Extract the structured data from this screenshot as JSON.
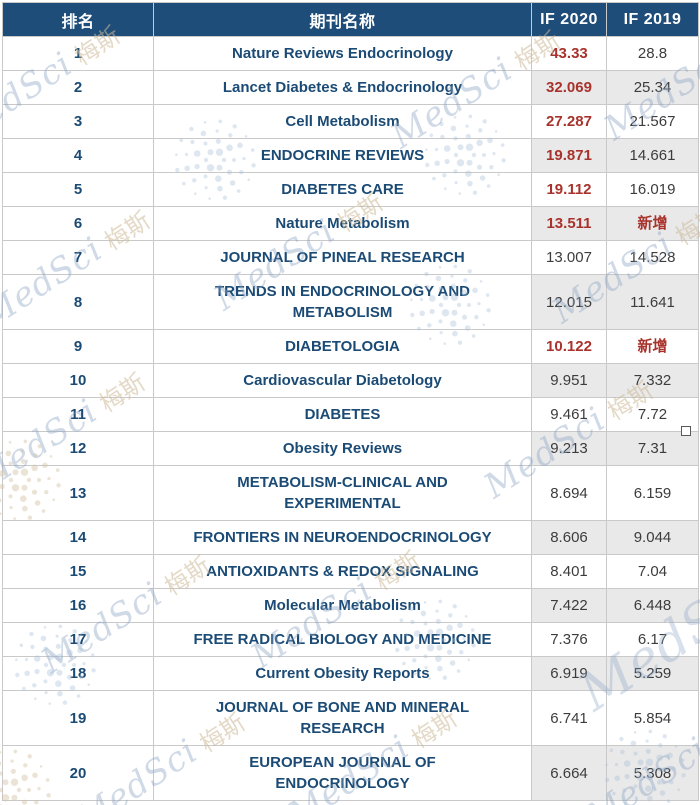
{
  "watermark": {
    "en": "MedSci",
    "cn": "梅斯"
  },
  "colors": {
    "header_bg": "#1e4d79",
    "header_text": "#ffffff",
    "journal_text": "#1b4b75",
    "highlight_red": "#a8332c",
    "value_text": "#3c3c3c",
    "alt_if_cell_bg": "#e9e9e9",
    "border": "#c9c9c9",
    "watermark_blue": "#a9c0d8",
    "watermark_tan": "#d2c2a4"
  },
  "chart_data": {
    "type": "table",
    "title": "",
    "columns": [
      "排名",
      "期刊名称",
      "IF 2020",
      "IF 2019"
    ],
    "new_entry_label": "新增",
    "rows": [
      {
        "rank": "1",
        "journal": "Nature Reviews Endocrinology",
        "if2020": "43.33",
        "if2020_red": true,
        "if2019": "28.8",
        "if2019_red": false
      },
      {
        "rank": "2",
        "journal": "Lancet Diabetes & Endocrinology",
        "if2020": "32.069",
        "if2020_red": true,
        "if2019": "25.34",
        "if2019_red": false
      },
      {
        "rank": "3",
        "journal": "Cell Metabolism",
        "if2020": "27.287",
        "if2020_red": true,
        "if2019": "21.567",
        "if2019_red": false
      },
      {
        "rank": "4",
        "journal": "ENDOCRINE REVIEWS",
        "if2020": "19.871",
        "if2020_red": true,
        "if2019": "14.661",
        "if2019_red": false
      },
      {
        "rank": "5",
        "journal": "DIABETES CARE",
        "if2020": "19.112",
        "if2020_red": true,
        "if2019": "16.019",
        "if2019_red": false
      },
      {
        "rank": "6",
        "journal": "Nature Metabolism",
        "if2020": "13.511",
        "if2020_red": true,
        "if2019": "新增",
        "if2019_red": true
      },
      {
        "rank": "7",
        "journal": "JOURNAL OF PINEAL RESEARCH",
        "if2020": "13.007",
        "if2020_red": false,
        "if2019": "14.528",
        "if2019_red": false
      },
      {
        "rank": "8",
        "journal": "TRENDS IN ENDOCRINOLOGY AND\nMETABOLISM",
        "if2020": "12.015",
        "if2020_red": false,
        "if2019": "11.641",
        "if2019_red": false
      },
      {
        "rank": "9",
        "journal": "DIABETOLOGIA",
        "if2020": "10.122",
        "if2020_red": true,
        "if2019": "新增",
        "if2019_red": true
      },
      {
        "rank": "10",
        "journal": "Cardiovascular Diabetology",
        "if2020": "9.951",
        "if2020_red": false,
        "if2019": "7.332",
        "if2019_red": false
      },
      {
        "rank": "11",
        "journal": "DIABETES",
        "if2020": "9.461",
        "if2020_red": false,
        "if2019": "7.72",
        "if2019_red": false
      },
      {
        "rank": "12",
        "journal": "Obesity Reviews",
        "if2020": "9.213",
        "if2020_red": false,
        "if2019": "7.31",
        "if2019_red": false
      },
      {
        "rank": "13",
        "journal": "METABOLISM-CLINICAL AND\nEXPERIMENTAL",
        "if2020": "8.694",
        "if2020_red": false,
        "if2019": "6.159",
        "if2019_red": false
      },
      {
        "rank": "14",
        "journal": "FRONTIERS IN NEUROENDOCRINOLOGY",
        "if2020": "8.606",
        "if2020_red": false,
        "if2019": "9.044",
        "if2019_red": false
      },
      {
        "rank": "15",
        "journal": "ANTIOXIDANTS & REDOX SIGNALING",
        "if2020": "8.401",
        "if2020_red": false,
        "if2019": "7.04",
        "if2019_red": false
      },
      {
        "rank": "16",
        "journal": "Molecular Metabolism",
        "if2020": "7.422",
        "if2020_red": false,
        "if2019": "6.448",
        "if2019_red": false
      },
      {
        "rank": "17",
        "journal": "FREE RADICAL BIOLOGY AND MEDICINE",
        "if2020": "7.376",
        "if2020_red": false,
        "if2019": "6.17",
        "if2019_red": false
      },
      {
        "rank": "18",
        "journal": "Current Obesity Reports",
        "if2020": "6.919",
        "if2020_red": false,
        "if2019": "5.259",
        "if2019_red": false
      },
      {
        "rank": "19",
        "journal": "JOURNAL OF BONE AND MINERAL\nRESEARCH",
        "if2020": "6.741",
        "if2020_red": false,
        "if2019": "5.854",
        "if2019_red": false
      },
      {
        "rank": "20",
        "journal": "EUROPEAN JOURNAL OF\nENDOCRINOLOGY",
        "if2020": "6.664",
        "if2020_red": false,
        "if2019": "5.308",
        "if2019_red": false
      }
    ]
  }
}
